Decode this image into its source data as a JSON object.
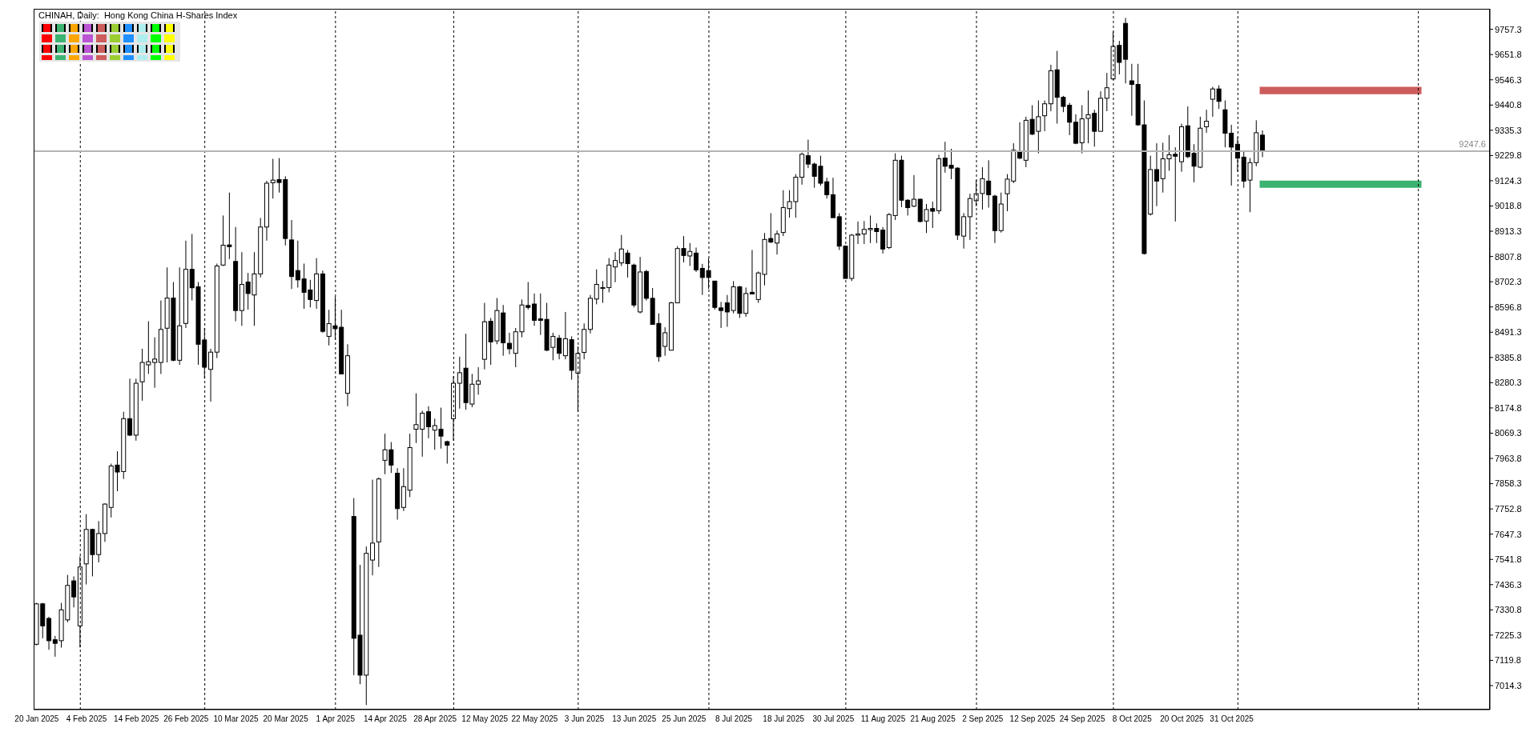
{
  "chart_data": {
    "type": "candlestick",
    "title": "CHINAH, Daily:  Hong Kong China H-Shares Index",
    "categories": [
      "20 Jan 2025",
      null,
      null,
      null,
      null,
      null,
      null,
      null,
      "4 Feb 2025",
      null,
      null,
      null,
      null,
      null,
      null,
      null,
      "14 Feb 2025",
      null,
      null,
      null,
      null,
      null,
      null,
      null,
      "26 Feb 2025",
      null,
      null,
      null,
      null,
      null,
      null,
      null,
      "10 Mar 2025",
      null,
      null,
      null,
      null,
      null,
      null,
      null,
      "20 Mar 2025",
      null,
      null,
      null,
      null,
      null,
      null,
      null,
      "1 Apr 2025",
      null,
      null,
      null,
      null,
      null,
      null,
      null,
      "14 Apr 2025",
      null,
      null,
      null,
      null,
      null,
      null,
      null,
      "28 Apr 2025",
      null,
      null,
      null,
      null,
      null,
      null,
      null,
      "12 May 2025",
      null,
      null,
      null,
      null,
      null,
      null,
      null,
      "22 May 2025",
      null,
      null,
      null,
      null,
      null,
      null,
      null,
      "3 Jun 2025",
      null,
      null,
      null,
      null,
      null,
      null,
      null,
      "13 Jun 2025",
      null,
      null,
      null,
      null,
      null,
      null,
      null,
      "25 Jun 2025",
      null,
      null,
      null,
      null,
      null,
      null,
      null,
      "8 Jul 2025",
      null,
      null,
      null,
      null,
      null,
      null,
      null,
      "18 Jul 2025",
      null,
      null,
      null,
      null,
      null,
      null,
      null,
      "30 Jul 2025",
      null,
      null,
      null,
      null,
      null,
      null,
      null,
      "11 Aug 2025",
      null,
      null,
      null,
      null,
      null,
      null,
      null,
      "21 Aug 2025",
      null,
      null,
      null,
      null,
      null,
      null,
      null,
      "2 Sep 2025",
      null,
      null,
      null,
      null,
      null,
      null,
      null,
      "12 Sep 2025",
      null,
      null,
      null,
      null,
      null,
      null,
      null,
      "24 Sep 2025",
      null,
      null,
      null,
      null,
      null,
      null,
      null,
      "8 Oct 2025",
      null,
      null,
      null,
      null,
      null,
      null,
      null,
      "20 Oct 2025",
      null,
      null,
      null,
      null,
      null,
      null,
      null,
      "31 Oct 2025",
      null,
      null,
      null,
      null,
      null,
      null,
      null,
      null,
      null,
      null,
      null,
      null,
      null,
      null,
      null,
      null,
      null,
      null,
      null,
      null,
      null,
      null,
      null,
      null,
      null,
      null,
      null,
      null,
      null,
      null,
      null,
      null,
      null,
      null,
      null,
      null,
      null,
      null,
      null,
      null,
      null
    ],
    "ohlc": [
      [
        7187,
        7360,
        7183,
        7356
      ],
      [
        7356,
        7360,
        7212,
        7264
      ],
      [
        7295,
        7302,
        7164,
        7202
      ],
      [
        7206,
        7222,
        7135,
        7191
      ],
      [
        7202,
        7360,
        7173,
        7331
      ],
      [
        7289,
        7477,
        7279,
        7433
      ],
      [
        7452,
        7471,
        7341,
        7385
      ],
      [
        7264,
        7554,
        7174,
        7510
      ],
      [
        7523,
        7731,
        7437,
        7667
      ],
      [
        7667,
        7670,
        7471,
        7562
      ],
      [
        7562,
        7702,
        7529,
        7650
      ],
      [
        7650,
        7776,
        7615,
        7773
      ],
      [
        7759,
        7942,
        7717,
        7932
      ],
      [
        7936,
        7994,
        7827,
        7907
      ],
      [
        7909,
        8159,
        7878,
        8130
      ],
      [
        8130,
        8297,
        8057,
        8061
      ],
      [
        8061,
        8297,
        8038,
        8278
      ],
      [
        8284,
        8422,
        8205,
        8365
      ],
      [
        8355,
        8537,
        8317,
        8368
      ],
      [
        8365,
        8470,
        8259,
        8379
      ],
      [
        8365,
        8624,
        8317,
        8503
      ],
      [
        8508,
        8762,
        8365,
        8634
      ],
      [
        8634,
        8701,
        8370,
        8374
      ],
      [
        8374,
        8762,
        8355,
        8518
      ],
      [
        8528,
        8874,
        8509,
        8754
      ],
      [
        8754,
        8902,
        8624,
        8677
      ],
      [
        8681,
        8701,
        8355,
        8441
      ],
      [
        8459,
        8509,
        8297,
        8345
      ],
      [
        8336,
        8422,
        8201,
        8408
      ],
      [
        8408,
        8778,
        8383,
        8768
      ],
      [
        8772,
        8979,
        8768,
        8855
      ],
      [
        8856,
        9075,
        8797,
        8849
      ],
      [
        8787,
        8931,
        8537,
        8582
      ],
      [
        8582,
        8826,
        8518,
        8691
      ],
      [
        8701,
        8739,
        8586,
        8653
      ],
      [
        8647,
        8826,
        8518,
        8735
      ],
      [
        8735,
        8969,
        8720,
        8931
      ],
      [
        8931,
        9124,
        8874,
        9114
      ],
      [
        9116,
        9216,
        9050,
        9127
      ],
      [
        9129,
        9219,
        9075,
        9117
      ],
      [
        9129,
        9143,
        8854,
        8883
      ],
      [
        8877,
        8960,
        8672,
        8724
      ],
      [
        8749,
        8874,
        8678,
        8710
      ],
      [
        8714,
        8778,
        8589,
        8658
      ],
      [
        8668,
        8710,
        8595,
        8628
      ],
      [
        8624,
        8801,
        8589,
        8735
      ],
      [
        8735,
        8749,
        8489,
        8495
      ],
      [
        8474,
        8585,
        8436,
        8527
      ],
      [
        8518,
        8640,
        8460,
        8506
      ],
      [
        8512,
        8585,
        8317,
        8317
      ],
      [
        8236,
        8441,
        8182,
        8393
      ],
      [
        7721,
        7798,
        7058,
        7212
      ],
      [
        7225,
        7519,
        7020,
        7058
      ],
      [
        7058,
        7596,
        6933,
        7567
      ],
      [
        7539,
        7875,
        7475,
        7610
      ],
      [
        7615,
        7884,
        7510,
        7878
      ],
      [
        7956,
        8067,
        7898,
        8000
      ],
      [
        8000,
        8032,
        7903,
        7936
      ],
      [
        7902,
        7923,
        7708,
        7754
      ],
      [
        7759,
        7923,
        7744,
        7846
      ],
      [
        7831,
        8067,
        7802,
        8009
      ],
      [
        8086,
        8236,
        8028,
        8105
      ],
      [
        8086,
        8163,
        7971,
        8153
      ],
      [
        8159,
        8182,
        8048,
        8096
      ],
      [
        8082,
        8130,
        8000,
        8101
      ],
      [
        8086,
        8176,
        8005,
        8057
      ],
      [
        8034,
        8038,
        7942,
        8019
      ],
      [
        8130,
        8307,
        8038,
        8278
      ],
      [
        8278,
        8389,
        8172,
        8322
      ],
      [
        8341,
        8485,
        8167,
        8197
      ],
      [
        8191,
        8317,
        8178,
        8274
      ],
      [
        8274,
        8345,
        8230,
        8288
      ],
      [
        8378,
        8614,
        8336,
        8535
      ],
      [
        8537,
        8551,
        8355,
        8451
      ],
      [
        8455,
        8634,
        8441,
        8582
      ],
      [
        8572,
        8605,
        8393,
        8447
      ],
      [
        8445,
        8489,
        8399,
        8422
      ],
      [
        8403,
        8509,
        8345,
        8493
      ],
      [
        8493,
        8628,
        8470,
        8605
      ],
      [
        8603,
        8701,
        8586,
        8595
      ],
      [
        8609,
        8653,
        8518,
        8541
      ],
      [
        8547,
        8653,
        8480,
        8541
      ],
      [
        8545,
        8614,
        8412,
        8416
      ],
      [
        8428,
        8489,
        8374,
        8474
      ],
      [
        8466,
        8480,
        8378,
        8403
      ],
      [
        8393,
        8576,
        8378,
        8464
      ],
      [
        8460,
        8474,
        8293,
        8332
      ],
      [
        8320,
        8432,
        8159,
        8403
      ],
      [
        8407,
        8528,
        8378,
        8503
      ],
      [
        8503,
        8647,
        8486,
        8633
      ],
      [
        8630,
        8754,
        8608,
        8691
      ],
      [
        8674,
        8705,
        8614,
        8678
      ],
      [
        8678,
        8801,
        8658,
        8772
      ],
      [
        8764,
        8826,
        8700,
        8791
      ],
      [
        8781,
        8898,
        8768,
        8839
      ],
      [
        8822,
        8835,
        8720,
        8778
      ],
      [
        8772,
        8778,
        8595,
        8605
      ],
      [
        8576,
        8806,
        8570,
        8743
      ],
      [
        8745,
        8752,
        8624,
        8633
      ],
      [
        8633,
        8676,
        8524,
        8524
      ],
      [
        8528,
        8570,
        8368,
        8389
      ],
      [
        8432,
        8512,
        8393,
        8489
      ],
      [
        8416,
        8618,
        8416,
        8614
      ],
      [
        8614,
        8851,
        8614,
        8841
      ],
      [
        8841,
        8893,
        8783,
        8812
      ],
      [
        8810,
        8864,
        8768,
        8829
      ],
      [
        8822,
        8845,
        8743,
        8752
      ],
      [
        8758,
        8777,
        8647,
        8720
      ],
      [
        8749,
        8801,
        8672,
        8720
      ],
      [
        8705,
        8705,
        8586,
        8595
      ],
      [
        8593,
        8618,
        8509,
        8582
      ],
      [
        8614,
        8647,
        8514,
        8576
      ],
      [
        8582,
        8705,
        8570,
        8681
      ],
      [
        8681,
        8685,
        8551,
        8570
      ],
      [
        8570,
        8678,
        8556,
        8653
      ],
      [
        8658,
        8835,
        8651,
        8651
      ],
      [
        8628,
        8745,
        8614,
        8739
      ],
      [
        8733,
        8906,
        8687,
        8879
      ],
      [
        8883,
        8989,
        8864,
        8868
      ],
      [
        8864,
        8916,
        8816,
        8902
      ],
      [
        8908,
        9085,
        8893,
        9012
      ],
      [
        9008,
        9085,
        8970,
        9037
      ],
      [
        9037,
        9152,
        8970,
        9139
      ],
      [
        9139,
        9242,
        9108,
        9235
      ],
      [
        9229,
        9296,
        9177,
        9194
      ],
      [
        9194,
        9200,
        9095,
        9143
      ],
      [
        9185,
        9229,
        9104,
        9114
      ],
      [
        9120,
        9137,
        9050,
        9066
      ],
      [
        9066,
        9137,
        8970,
        8970
      ],
      [
        8974,
        8989,
        8835,
        8851
      ],
      [
        8851,
        8854,
        8716,
        8716
      ],
      [
        8716,
        8902,
        8705,
        8897
      ],
      [
        8897,
        8954,
        8860,
        8902
      ],
      [
        8902,
        8956,
        8860,
        8921
      ],
      [
        8920,
        8979,
        8864,
        8925
      ],
      [
        8925,
        8946,
        8864,
        8912
      ],
      [
        8918,
        8931,
        8820,
        8839
      ],
      [
        8845,
        8989,
        8839,
        8983
      ],
      [
        8979,
        9239,
        8960,
        9210
      ],
      [
        9210,
        9229,
        9014,
        9043
      ],
      [
        9043,
        9047,
        8979,
        9012
      ],
      [
        9018,
        9148,
        9014,
        9047
      ],
      [
        9047,
        9050,
        8950,
        8954
      ],
      [
        8956,
        9027,
        8906,
        9004
      ],
      [
        9008,
        9037,
        8927,
        8997
      ],
      [
        8999,
        9233,
        8985,
        9216
      ],
      [
        9219,
        9287,
        9158,
        9185
      ],
      [
        9189,
        9258,
        9131,
        9177
      ],
      [
        9177,
        9181,
        8877,
        8897
      ],
      [
        8893,
        8989,
        8841,
        8974
      ],
      [
        8974,
        9070,
        8877,
        9050
      ],
      [
        9041,
        9127,
        9018,
        9070
      ],
      [
        9071,
        9181,
        9004,
        9133
      ],
      [
        9123,
        9210,
        9012,
        9066
      ],
      [
        9060,
        9066,
        8864,
        8916
      ],
      [
        8916,
        9075,
        8908,
        9027
      ],
      [
        9070,
        9152,
        8997,
        9131
      ],
      [
        9123,
        9281,
        9114,
        9252
      ],
      [
        9248,
        9369,
        9214,
        9219
      ],
      [
        9210,
        9392,
        9181,
        9377
      ],
      [
        9381,
        9440,
        9315,
        9319
      ],
      [
        9331,
        9460,
        9239,
        9392
      ],
      [
        9396,
        9460,
        9331,
        9446
      ],
      [
        9446,
        9609,
        9415,
        9584
      ],
      [
        9588,
        9667,
        9363,
        9473
      ],
      [
        9473,
        9479,
        9411,
        9435
      ],
      [
        9440,
        9450,
        9315,
        9369
      ],
      [
        9369,
        9402,
        9277,
        9281
      ],
      [
        9283,
        9440,
        9239,
        9383
      ],
      [
        9385,
        9502,
        9281,
        9400
      ],
      [
        9406,
        9421,
        9267,
        9331
      ],
      [
        9331,
        9498,
        9331,
        9469
      ],
      [
        9469,
        9575,
        9415,
        9513
      ],
      [
        9550,
        9748,
        9546,
        9686
      ],
      [
        9690,
        9709,
        9569,
        9619
      ],
      [
        9782,
        9805,
        9531,
        9632
      ],
      [
        9542,
        9613,
        9396,
        9527
      ],
      [
        9527,
        9613,
        9354,
        9358
      ],
      [
        9358,
        9460,
        8816,
        8820
      ],
      [
        8985,
        9229,
        8979,
        9171
      ],
      [
        9171,
        9281,
        9018,
        9123
      ],
      [
        9133,
        9283,
        9075,
        9216
      ],
      [
        9216,
        9315,
        9166,
        9233
      ],
      [
        9235,
        9264,
        8954,
        9227
      ],
      [
        9204,
        9363,
        9162,
        9350
      ],
      [
        9354,
        9435,
        9219,
        9225
      ],
      [
        9239,
        9277,
        9118,
        9185
      ],
      [
        9181,
        9392,
        9177,
        9344
      ],
      [
        9350,
        9421,
        9325,
        9373
      ],
      [
        9465,
        9517,
        9392,
        9508
      ],
      [
        9508,
        9523,
        9425,
        9456
      ],
      [
        9421,
        9460,
        9264,
        9323
      ],
      [
        9323,
        9358,
        9104,
        9265
      ],
      [
        9277,
        9306,
        9162,
        9219
      ],
      [
        9223,
        9248,
        9095,
        9123
      ],
      [
        9127,
        9219,
        8993,
        9200
      ],
      [
        9200,
        9377,
        9185,
        9325
      ],
      [
        9315,
        9335,
        9223,
        9247.6
      ],
      null,
      null,
      null,
      null,
      null,
      null,
      null,
      null,
      null,
      null,
      null,
      null,
      null,
      null,
      null,
      null,
      null,
      null,
      null,
      null,
      null,
      null,
      null,
      null,
      null,
      null,
      null,
      null,
      null,
      null,
      null,
      null,
      null,
      null,
      null,
      null
    ],
    "ylim": [
      6914,
      9843
    ],
    "yticks": [
      7014.3,
      7119.8,
      7225.3,
      7330.8,
      7436.3,
      7541.8,
      7647.3,
      7752.8,
      7858.3,
      7963.8,
      8069.3,
      8174.8,
      8280.3,
      8385.8,
      8491.3,
      8596.8,
      8702.3,
      8807.8,
      8913.3,
      9018.8,
      9124.3,
      9229.8,
      9335.3,
      9440.8,
      9546.3,
      9651.8,
      9757.3
    ],
    "ref_lines": [
      {
        "axis": "y",
        "value": 9247.6,
        "label": "9247.6",
        "color": "#b4b4b4",
        "line_style": "solid"
      }
    ],
    "bands": [
      {
        "axis": "y",
        "from": 9486,
        "to": 9517,
        "color": "#cd5c5c"
      },
      {
        "axis": "y",
        "from": 9095,
        "to": 9125,
        "color": "#3cb371"
      }
    ]
  }
}
